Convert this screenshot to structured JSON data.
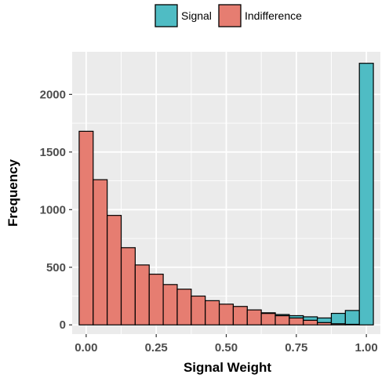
{
  "chart_data": {
    "type": "bar",
    "subtype": "histogram",
    "xlabel": "Signal Weight",
    "ylabel": "Frequency",
    "xlim": [
      -0.05,
      1.05
    ],
    "ylim": [
      -80,
      2370
    ],
    "x_ticks": [
      {
        "value": 0.0,
        "label": "0.00"
      },
      {
        "value": 0.25,
        "label": "0.25"
      },
      {
        "value": 0.5,
        "label": "0.50"
      },
      {
        "value": 0.75,
        "label": "0.75"
      },
      {
        "value": 1.0,
        "label": "1.00"
      }
    ],
    "y_ticks": [
      {
        "value": 0,
        "label": "0"
      },
      {
        "value": 500,
        "label": "500"
      },
      {
        "value": 1000,
        "label": "1000"
      },
      {
        "value": 1500,
        "label": "1500"
      },
      {
        "value": 2000,
        "label": "2000"
      }
    ],
    "bin_width": 0.05,
    "grid": true,
    "background": "#ebebeb",
    "legend_position": "top",
    "series": [
      {
        "name": "Signal",
        "color": "#4fbcc4",
        "bins": [
          {
            "x": 0.0,
            "count": 0
          },
          {
            "x": 0.05,
            "count": 0
          },
          {
            "x": 0.1,
            "count": 0
          },
          {
            "x": 0.15,
            "count": 0
          },
          {
            "x": 0.2,
            "count": 0
          },
          {
            "x": 0.25,
            "count": 0
          },
          {
            "x": 0.3,
            "count": 0
          },
          {
            "x": 0.35,
            "count": 0
          },
          {
            "x": 0.4,
            "count": 0
          },
          {
            "x": 0.45,
            "count": 0
          },
          {
            "x": 0.5,
            "count": 0
          },
          {
            "x": 0.55,
            "count": 0
          },
          {
            "x": 0.6,
            "count": 0
          },
          {
            "x": 0.65,
            "count": 5
          },
          {
            "x": 0.7,
            "count": 10
          },
          {
            "x": 0.75,
            "count": 20
          },
          {
            "x": 0.8,
            "count": 30
          },
          {
            "x": 0.85,
            "count": 40
          },
          {
            "x": 0.9,
            "count": 90
          },
          {
            "x": 0.95,
            "count": 120
          },
          {
            "x": 1.0,
            "count": 2270
          }
        ]
      },
      {
        "name": "Indifference",
        "color": "#e67d71",
        "bins": [
          {
            "x": 0.0,
            "count": 1680
          },
          {
            "x": 0.05,
            "count": 1260
          },
          {
            "x": 0.1,
            "count": 950
          },
          {
            "x": 0.15,
            "count": 670
          },
          {
            "x": 0.2,
            "count": 520
          },
          {
            "x": 0.25,
            "count": 440
          },
          {
            "x": 0.3,
            "count": 350
          },
          {
            "x": 0.35,
            "count": 310
          },
          {
            "x": 0.4,
            "count": 250
          },
          {
            "x": 0.45,
            "count": 210
          },
          {
            "x": 0.5,
            "count": 180
          },
          {
            "x": 0.55,
            "count": 160
          },
          {
            "x": 0.6,
            "count": 130
          },
          {
            "x": 0.65,
            "count": 100
          },
          {
            "x": 0.7,
            "count": 80
          },
          {
            "x": 0.75,
            "count": 60
          },
          {
            "x": 0.8,
            "count": 40
          },
          {
            "x": 0.85,
            "count": 20
          },
          {
            "x": 0.9,
            "count": 10
          },
          {
            "x": 0.95,
            "count": 5
          },
          {
            "x": 1.0,
            "count": 0
          }
        ]
      }
    ]
  }
}
